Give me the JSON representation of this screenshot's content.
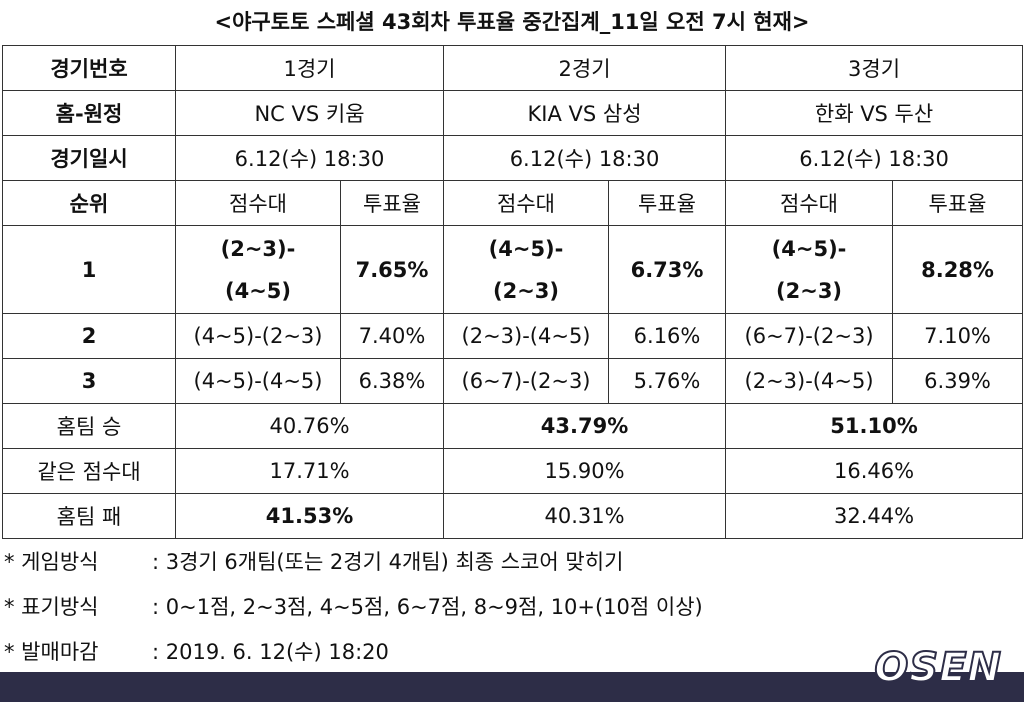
{
  "title": "<야구토토 스페셜 43회차 투표율 중간집계_11일 오전 7시 현재>",
  "table": {
    "rows": [
      [
        "경기번호",
        "1경기",
        "2경기",
        "3경기"
      ],
      [
        "홈-원정",
        "NC VS 키움",
        "KIA VS 삼성",
        "한화 VS 두산"
      ],
      [
        "경기일시",
        "6.12(수) 18:30",
        "6.12(수) 18:30",
        "6.12(수) 18:30"
      ],
      [
        "순위",
        "점수대",
        "투표율",
        "점수대",
        "투표율",
        "점수대",
        "투표율"
      ],
      [
        "1",
        "(2~3)-(4~5)",
        "7.65%",
        "(4~5)-(2~3)",
        "6.73%",
        "(4~5)-(2~3)",
        "8.28%"
      ],
      [
        "2",
        "(4~5)-(2~3)",
        "7.40%",
        "(2~3)-(4~5)",
        "6.16%",
        "(6~7)-(2~3)",
        "7.10%"
      ],
      [
        "3",
        "(4~5)-(4~5)",
        "6.38%",
        "(6~7)-(2~3)",
        "5.76%",
        "(2~3)-(4~5)",
        "6.39%"
      ],
      [
        "홈팀 승",
        "40.76%",
        "43.79%",
        "51.10%"
      ],
      [
        "같은 점수대",
        "17.71%",
        "15.90%",
        "16.46%"
      ],
      [
        "홈팀 패",
        "41.53%",
        "40.31%",
        "32.44%"
      ]
    ]
  },
  "notes": [
    [
      "* 게임방식",
      ": 3경기 6개팀(또는 2경기 4개팀) 최종 스코어 맞히기"
    ],
    [
      "* 표기방식",
      ": 0~1점, 2~3점, 4~5점, 6~7점, 8~9점, 10+(10점 이상)"
    ],
    [
      "* 발매마감",
      ": 2019. 6. 12(수) 18:20"
    ]
  ],
  "logo": "OSEN"
}
